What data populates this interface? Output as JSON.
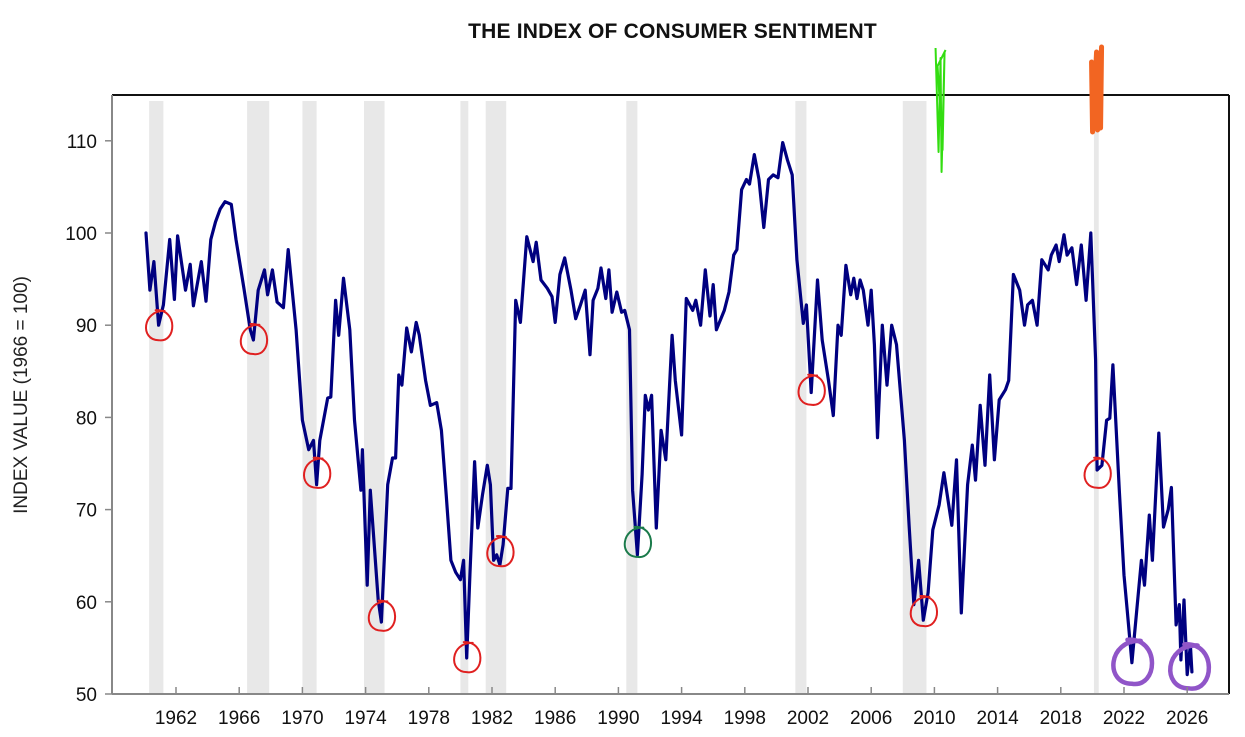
{
  "chart_data": {
    "type": "line",
    "title": "THE INDEX OF CONSUMER SENTIMENT",
    "xlabel": "",
    "ylabel": "INDEX VALUE (1966 = 100)",
    "xlim": [
      1959.75,
      2028.5
    ],
    "ylim": [
      50,
      116
    ],
    "grid": false,
    "legend": "none",
    "y_ticks": [
      50,
      60,
      70,
      80,
      90,
      100,
      110
    ],
    "x_ticks": [
      1962,
      1966,
      1970,
      1974,
      1978,
      1982,
      1986,
      1990,
      1994,
      1998,
      2002,
      2006,
      2010,
      2014,
      2018,
      2022,
      2026
    ],
    "line_color": "#000080",
    "recession_color": "#e8e8e8",
    "recessions": [
      [
        1960.3,
        1961.2
      ],
      [
        1966.5,
        1967.9
      ],
      [
        1970.0,
        1970.9
      ],
      [
        1973.9,
        1975.2
      ],
      [
        1980.0,
        1980.5
      ],
      [
        1981.6,
        1982.9
      ],
      [
        1990.5,
        1991.2
      ],
      [
        2001.2,
        2001.9
      ],
      [
        2008.0,
        2009.5
      ],
      [
        2020.1,
        2020.4
      ]
    ],
    "series": [
      {
        "name": "Index of Consumer Sentiment",
        "x": [
          1960.1,
          1960.35,
          1960.6,
          1960.9,
          1961.2,
          1961.6,
          1961.9,
          1962.1,
          1962.6,
          1962.9,
          1963.1,
          1963.6,
          1963.9,
          1964.2,
          1964.5,
          1964.8,
          1965.1,
          1965.5,
          1965.8,
          1966.3,
          1966.7,
          1966.9,
          1967.2,
          1967.6,
          1967.8,
          1968.1,
          1968.4,
          1968.8,
          1969.1,
          1969.6,
          1970.0,
          1970.4,
          1970.7,
          1970.9,
          1971.1,
          1971.6,
          1971.8,
          1972.1,
          1972.3,
          1972.6,
          1973.0,
          1973.3,
          1973.7,
          1973.8,
          1974.1,
          1974.3,
          1974.8,
          1975.0,
          1975.4,
          1975.7,
          1975.9,
          1976.1,
          1976.3,
          1976.6,
          1976.9,
          1977.2,
          1977.4,
          1977.8,
          1978.1,
          1978.5,
          1978.8,
          1979.1,
          1979.4,
          1979.7,
          1980.0,
          1980.2,
          1980.4,
          1980.6,
          1980.9,
          1981.1,
          1981.4,
          1981.7,
          1981.9,
          1982.1,
          1982.3,
          1982.5,
          1982.7,
          1983.0,
          1983.2,
          1983.5,
          1983.8,
          1984.2,
          1984.6,
          1984.8,
          1985.1,
          1985.5,
          1985.8,
          1986.0,
          1986.3,
          1986.6,
          1987.0,
          1987.3,
          1987.6,
          1987.9,
          1988.2,
          1988.4,
          1988.7,
          1988.9,
          1989.2,
          1989.4,
          1989.6,
          1989.9,
          1990.2,
          1990.4,
          1990.7,
          1990.9,
          1991.2,
          1991.5,
          1991.7,
          1991.9,
          1992.1,
          1992.4,
          1992.7,
          1993.0,
          1993.4,
          1993.6,
          1994.0,
          1994.3,
          1994.7,
          1994.9,
          1995.2,
          1995.5,
          1995.8,
          1996.0,
          1996.2,
          1996.7,
          1997.0,
          1997.3,
          1997.5,
          1997.8,
          1998.1,
          1998.3,
          1998.6,
          1998.9,
          1999.2,
          1999.5,
          1999.8,
          2000.1,
          2000.4,
          2000.7,
          2001.0,
          2001.3,
          2001.7,
          2001.9,
          2002.2,
          2002.6,
          2002.9,
          2003.3,
          2003.6,
          2003.9,
          2004.1,
          2004.4,
          2004.7,
          2004.9,
          2005.1,
          2005.3,
          2005.5,
          2005.8,
          2006.0,
          2006.2,
          2006.4,
          2006.7,
          2007.0,
          2007.3,
          2007.6,
          2008.1,
          2008.4,
          2008.7,
          2009.0,
          2009.3,
          2009.6,
          2009.9,
          2010.3,
          2010.6,
          2011.1,
          2011.4,
          2011.7,
          2012.1,
          2012.4,
          2012.6,
          2012.9,
          2013.2,
          2013.5,
          2013.8,
          2014.1,
          2014.5,
          2014.7,
          2015.0,
          2015.4,
          2015.7,
          2015.9,
          2016.2,
          2016.5,
          2016.8,
          2017.2,
          2017.4,
          2017.7,
          2017.9,
          2018.2,
          2018.4,
          2018.7,
          2019.0,
          2019.3,
          2019.6,
          2019.9,
          2020.2,
          2020.3,
          2020.6,
          2020.9,
          2021.1,
          2021.3,
          2021.7,
          2022.0,
          2022.2,
          2022.5,
          2022.8,
          2023.1,
          2023.3,
          2023.6,
          2023.8,
          2024.2,
          2024.5,
          2024.8,
          2025.0,
          2025.3,
          2025.5,
          2025.6,
          2025.8,
          2026.0,
          2026.2,
          2026.3
        ],
        "values": [
          100.0,
          93.8,
          96.9,
          90.0,
          92.2,
          99.3,
          92.8,
          99.7,
          93.8,
          96.6,
          92.1,
          96.9,
          92.6,
          99.3,
          101.2,
          102.6,
          103.4,
          103.1,
          99.3,
          94.0,
          89.5,
          88.4,
          93.8,
          96.0,
          93.3,
          96.0,
          92.5,
          91.9,
          98.2,
          89.5,
          79.7,
          76.5,
          77.5,
          72.7,
          77.5,
          82.1,
          82.2,
          92.7,
          88.9,
          95.1,
          89.5,
          79.7,
          72.1,
          76.5,
          61.8,
          72.1,
          60.2,
          57.8,
          72.7,
          75.6,
          75.6,
          84.6,
          83.5,
          89.7,
          87.1,
          90.3,
          88.9,
          84.0,
          81.3,
          81.6,
          78.6,
          71.6,
          64.5,
          63.2,
          62.4,
          64.5,
          53.9,
          62.9,
          75.2,
          68.0,
          71.6,
          74.8,
          72.7,
          64.5,
          65.1,
          64.0,
          66.2,
          72.3,
          72.3,
          92.7,
          90.3,
          99.6,
          96.9,
          99.0,
          94.9,
          94.0,
          93.1,
          90.3,
          95.5,
          97.3,
          93.8,
          90.7,
          92.2,
          93.8,
          86.8,
          92.7,
          94.0,
          96.2,
          92.9,
          96.0,
          91.4,
          93.6,
          91.4,
          91.6,
          89.5,
          72.1,
          65.1,
          73.8,
          82.4,
          80.8,
          82.4,
          68.0,
          78.6,
          75.4,
          88.9,
          84.0,
          78.1,
          92.9,
          91.6,
          92.7,
          90.0,
          96.0,
          91.0,
          94.4,
          89.5,
          91.6,
          93.6,
          97.6,
          98.2,
          104.7,
          105.8,
          105.3,
          108.5,
          105.8,
          100.6,
          105.8,
          106.3,
          106.0,
          109.8,
          107.9,
          106.3,
          97.1,
          90.2,
          92.2,
          82.7,
          94.9,
          88.4,
          84.0,
          80.2,
          90.0,
          88.9,
          96.5,
          93.3,
          95.1,
          92.9,
          94.9,
          93.8,
          90.0,
          93.8,
          87.9,
          77.8,
          90.0,
          83.5,
          90.0,
          87.9,
          77.5,
          68.3,
          59.7,
          64.5,
          58.0,
          61.0,
          67.8,
          70.5,
          74.0,
          68.3,
          75.4,
          58.8,
          72.7,
          77.0,
          73.2,
          81.3,
          74.8,
          84.6,
          75.4,
          81.9,
          83.0,
          84.0,
          95.5,
          93.8,
          90.0,
          92.2,
          92.7,
          90.0,
          97.1,
          96.0,
          97.6,
          98.7,
          96.9,
          99.8,
          97.6,
          98.4,
          94.4,
          98.7,
          92.7,
          100.0,
          86.2,
          74.3,
          74.8,
          79.7,
          79.9,
          85.7,
          72.1,
          62.9,
          59.1,
          53.4,
          58.9,
          64.5,
          61.8,
          69.4,
          64.5,
          78.3,
          68.1,
          70.0,
          72.4,
          57.5,
          59.7,
          53.7,
          60.2,
          52.1,
          55.3,
          52.4
        ]
      }
    ],
    "annotations": [
      {
        "type": "circle",
        "color": "#e02020",
        "x": 1960.9,
        "y": 90.0
      },
      {
        "type": "circle",
        "color": "#e02020",
        "x": 1966.9,
        "y": 88.5
      },
      {
        "type": "circle",
        "color": "#e02020",
        "x": 1970.9,
        "y": 74.0
      },
      {
        "type": "circle",
        "color": "#e02020",
        "x": 1975.0,
        "y": 58.5
      },
      {
        "type": "circle",
        "color": "#e02020",
        "x": 1980.4,
        "y": 54.0
      },
      {
        "type": "circle",
        "color": "#e02020",
        "x": 1982.5,
        "y": 65.5
      },
      {
        "type": "circle",
        "color": "#1a7a4a",
        "x": 1991.2,
        "y": 66.5
      },
      {
        "type": "circle",
        "color": "#e02020",
        "x": 2002.2,
        "y": 83.0
      },
      {
        "type": "circle",
        "color": "#e02020",
        "x": 2009.3,
        "y": 59.0
      },
      {
        "type": "circle",
        "color": "#e02020",
        "x": 2020.3,
        "y": 74.0
      },
      {
        "type": "circle",
        "color": "#9055c8",
        "x": 2022.5,
        "y": 53.5
      },
      {
        "type": "circle",
        "color": "#9055c8",
        "x": 2026.1,
        "y": 53.0
      },
      {
        "type": "scribble",
        "color": "#33dd11",
        "x": 2010.2,
        "y": 116
      },
      {
        "type": "scribble",
        "color": "#f26522",
        "x": 2020.2,
        "y": 116
      }
    ]
  }
}
